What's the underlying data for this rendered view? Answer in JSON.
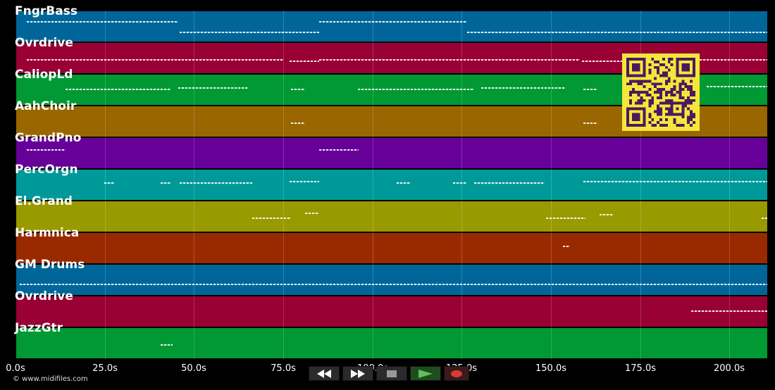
{
  "tracks": [
    {
      "label": "FngrBass",
      "color": "#006699"
    },
    {
      "label": "Ovrdrive",
      "color": "#990033"
    },
    {
      "label": "CaliopLd",
      "color": "#009933"
    },
    {
      "label": "AahChoir",
      "color": "#996600"
    },
    {
      "label": "GrandPno",
      "color": "#660099"
    },
    {
      "label": "PercOrgn",
      "color": "#009999"
    },
    {
      "label": "El.Grand",
      "color": "#999900"
    },
    {
      "label": "Harmnica",
      "color": "#992a00"
    },
    {
      "label": "GM Drums",
      "color": "#006699"
    },
    {
      "label": "Ovrdrive",
      "color": "#990033"
    },
    {
      "label": "JazzGtr",
      "color": "#009933"
    }
  ],
  "timeline": {
    "ticks": [
      "0.0s",
      "25.0s",
      "50.0s",
      "75.0s",
      "100.0s",
      "125.0s",
      "150.0s",
      "175.0s",
      "200.0s"
    ],
    "seconds_per_tick": 25,
    "visible_seconds": 210.8
  },
  "transport": {
    "rewind_icon": "rewind-icon",
    "fast_forward_icon": "fast-forward-icon",
    "stop_icon": "stop-icon",
    "play_icon": "play-icon",
    "record_icon": "record-icon"
  },
  "copyright": "© www.midifiles.com",
  "qr_icon": "qr-code-icon"
}
